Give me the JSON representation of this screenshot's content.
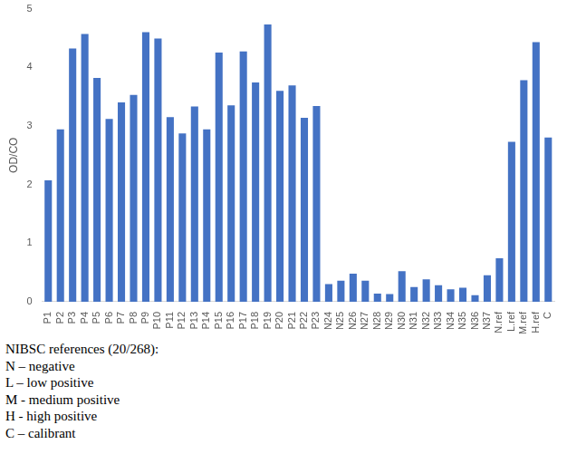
{
  "chart_data": {
    "type": "bar",
    "y_label": "OD/CO",
    "categories": [
      "P1",
      "P2",
      "P3",
      "P4",
      "P5",
      "P6",
      "P7",
      "P8",
      "P9",
      "P10",
      "P11",
      "P12",
      "P13",
      "P14",
      "P15",
      "P16",
      "P17",
      "P18",
      "P19",
      "P20",
      "P21",
      "P22",
      "P23",
      "N24",
      "N25",
      "N26",
      "N27",
      "N28",
      "N29",
      "N30",
      "N31",
      "N32",
      "N33",
      "N34",
      "N35",
      "N36",
      "N37",
      "N.ref",
      "L.ref",
      "M.ref",
      "H.ref",
      "C"
    ],
    "values": [
      2.07,
      2.94,
      4.32,
      4.57,
      3.82,
      3.12,
      3.4,
      3.53,
      4.6,
      4.49,
      3.15,
      2.87,
      3.33,
      2.94,
      4.25,
      3.35,
      4.27,
      3.74,
      4.73,
      3.6,
      3.69,
      3.14,
      3.34,
      0.3,
      0.36,
      0.48,
      0.36,
      0.14,
      0.13,
      0.52,
      0.25,
      0.38,
      0.28,
      0.21,
      0.24,
      0.11,
      0.45,
      0.74,
      2.73,
      3.78,
      4.43,
      2.8
    ],
    "color": "#4472c4",
    "ylim": [
      0,
      5
    ],
    "yticks": [
      0,
      1,
      2,
      3,
      4,
      5
    ],
    "grid": false,
    "annotations": [
      "NIBSC references (20/268):",
      "N – negative",
      "L – low positive",
      "M - medium positive",
      "H - high positive",
      "C – calibrant"
    ]
  }
}
